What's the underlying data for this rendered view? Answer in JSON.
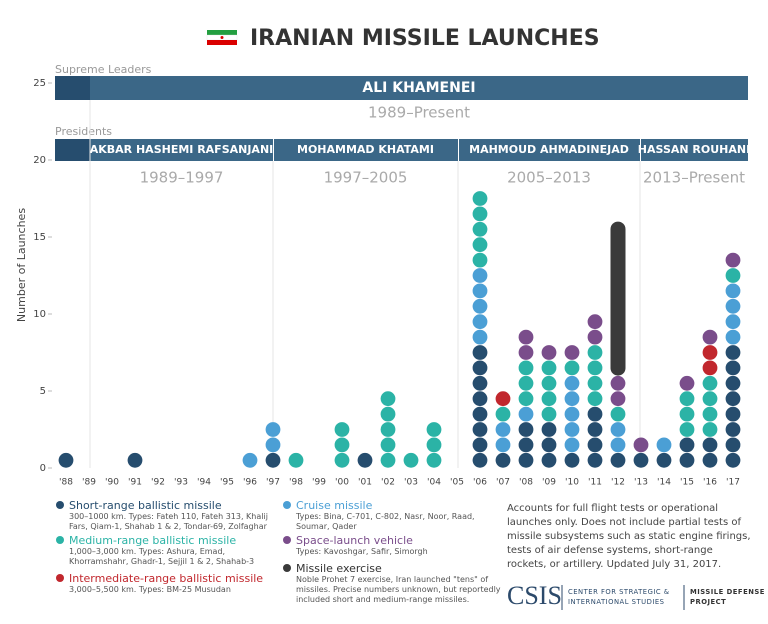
{
  "chart_data": {
    "type": "dot",
    "title": "IRANIAN MISSILE LAUNCHES",
    "ylabel": "Number of Launches",
    "ylim": [
      0,
      26
    ],
    "yticks": [
      0,
      5,
      10,
      15,
      20,
      25
    ],
    "categories": [
      "'88",
      "'89",
      "'90",
      "'91",
      "'92",
      "'93",
      "'94",
      "'95",
      "'96",
      "'97",
      "'98",
      "'99",
      "'00",
      "'01",
      "'02",
      "'03",
      "'04",
      "'05",
      "'06",
      "'07",
      "'08",
      "'09",
      "'10",
      "'11",
      "'12",
      "'13",
      "'14",
      "'15",
      "'16",
      "'17"
    ],
    "series": [
      {
        "name": "Short-range ballistic missile",
        "description": "300–1000 km. Types: Fateh 110, Fateh 313, Khalij Fars, Qiam-1, Shahab 1 & 2, Tondar-69, Zolfaghar",
        "color": "#264d6e",
        "marker": "dot",
        "values": [
          1,
          0,
          0,
          1,
          0,
          0,
          0,
          0,
          0,
          1,
          0,
          0,
          0,
          1,
          0,
          0,
          0,
          0,
          8,
          1,
          3,
          3,
          1,
          4,
          1,
          1,
          1,
          2,
          2,
          8
        ]
      },
      {
        "name": "Medium-range ballistic missile",
        "description": "1,000–3,000 km. Types: Ashura, Emad, Khorramshahr, Ghadr-1, Sejjil 1 & 2, Shahab-3",
        "color": "#2bb3a6",
        "marker": "dot",
        "values": [
          0,
          0,
          0,
          0,
          0,
          0,
          0,
          0,
          0,
          0,
          1,
          0,
          3,
          0,
          5,
          1,
          3,
          0,
          5,
          1,
          3,
          4,
          1,
          4,
          1,
          0,
          0,
          3,
          4,
          1
        ]
      },
      {
        "name": "Intermediate-range ballistic missile",
        "description": "3,000–5,500 km. Types: BM-25 Musudan",
        "color": "#c1272d",
        "marker": "dot",
        "values": [
          0,
          0,
          0,
          0,
          0,
          0,
          0,
          0,
          0,
          0,
          0,
          0,
          0,
          0,
          0,
          0,
          0,
          0,
          0,
          1,
          0,
          0,
          0,
          0,
          0,
          0,
          0,
          0,
          2,
          0
        ]
      },
      {
        "name": "Cruise missile",
        "description": "Types: Bina, C-701, C-802, Nasr, Noor, Raad, Soumar, Qader",
        "color": "#4b9fd5",
        "marker": "dot",
        "values": [
          0,
          0,
          0,
          0,
          0,
          0,
          0,
          0,
          1,
          2,
          0,
          0,
          0,
          0,
          0,
          0,
          0,
          0,
          5,
          2,
          1,
          0,
          5,
          0,
          2,
          0,
          1,
          0,
          0,
          4
        ]
      },
      {
        "name": "Space-launch vehicle",
        "description": "Types: Kavoshgar, Safir, Simorgh",
        "color": "#7a4d8b",
        "marker": "dot",
        "values": [
          0,
          0,
          0,
          0,
          0,
          0,
          0,
          0,
          0,
          0,
          0,
          0,
          0,
          0,
          0,
          0,
          0,
          0,
          0,
          0,
          2,
          1,
          1,
          2,
          2,
          1,
          0,
          1,
          1,
          1
        ]
      },
      {
        "name": "Missile exercise",
        "description": "Noble Prohet 7 exercise, Iran launched \"tens\" of missiles. Precise numbers unknown, but reportedly included short and medium-range missiles.",
        "color": "#3a3a3a",
        "marker": "pill",
        "values": [
          0,
          0,
          0,
          0,
          0,
          0,
          0,
          0,
          0,
          0,
          0,
          0,
          0,
          0,
          0,
          0,
          0,
          0,
          0,
          0,
          0,
          0,
          0,
          0,
          10,
          0,
          0,
          0,
          0,
          0
        ]
      }
    ],
    "leaders": {
      "label": "Supreme Leaders",
      "name": "ALI KHAMENEI",
      "term": "1989–Present"
    },
    "presidents": {
      "label": "Presidents",
      "items": [
        {
          "name": "AKBAR HASHEMI RAFSANJANI",
          "term": "1989–1997"
        },
        {
          "name": "MOHAMMAD KHATAMI",
          "term": "1997–2005"
        },
        {
          "name": "MAHMOUD AHMADINEJAD",
          "term": "2005–2013"
        },
        {
          "name": "HASSAN ROUHANI",
          "term": "2013–Present"
        }
      ]
    },
    "note": "Accounts for full flight tests or operational launches only. Does not include partial tests of missile subsystems such as static engine firings, tests of air defense systems, short-range rockets, or artillery. Updated July 31, 2017.",
    "logo": {
      "name": "CSIS",
      "org": [
        "CENTER FOR STRATEGIC &",
        "INTERNATIONAL STUDIES"
      ],
      "project": [
        "MISSILE DEFENSE",
        "PROJECT"
      ]
    }
  }
}
